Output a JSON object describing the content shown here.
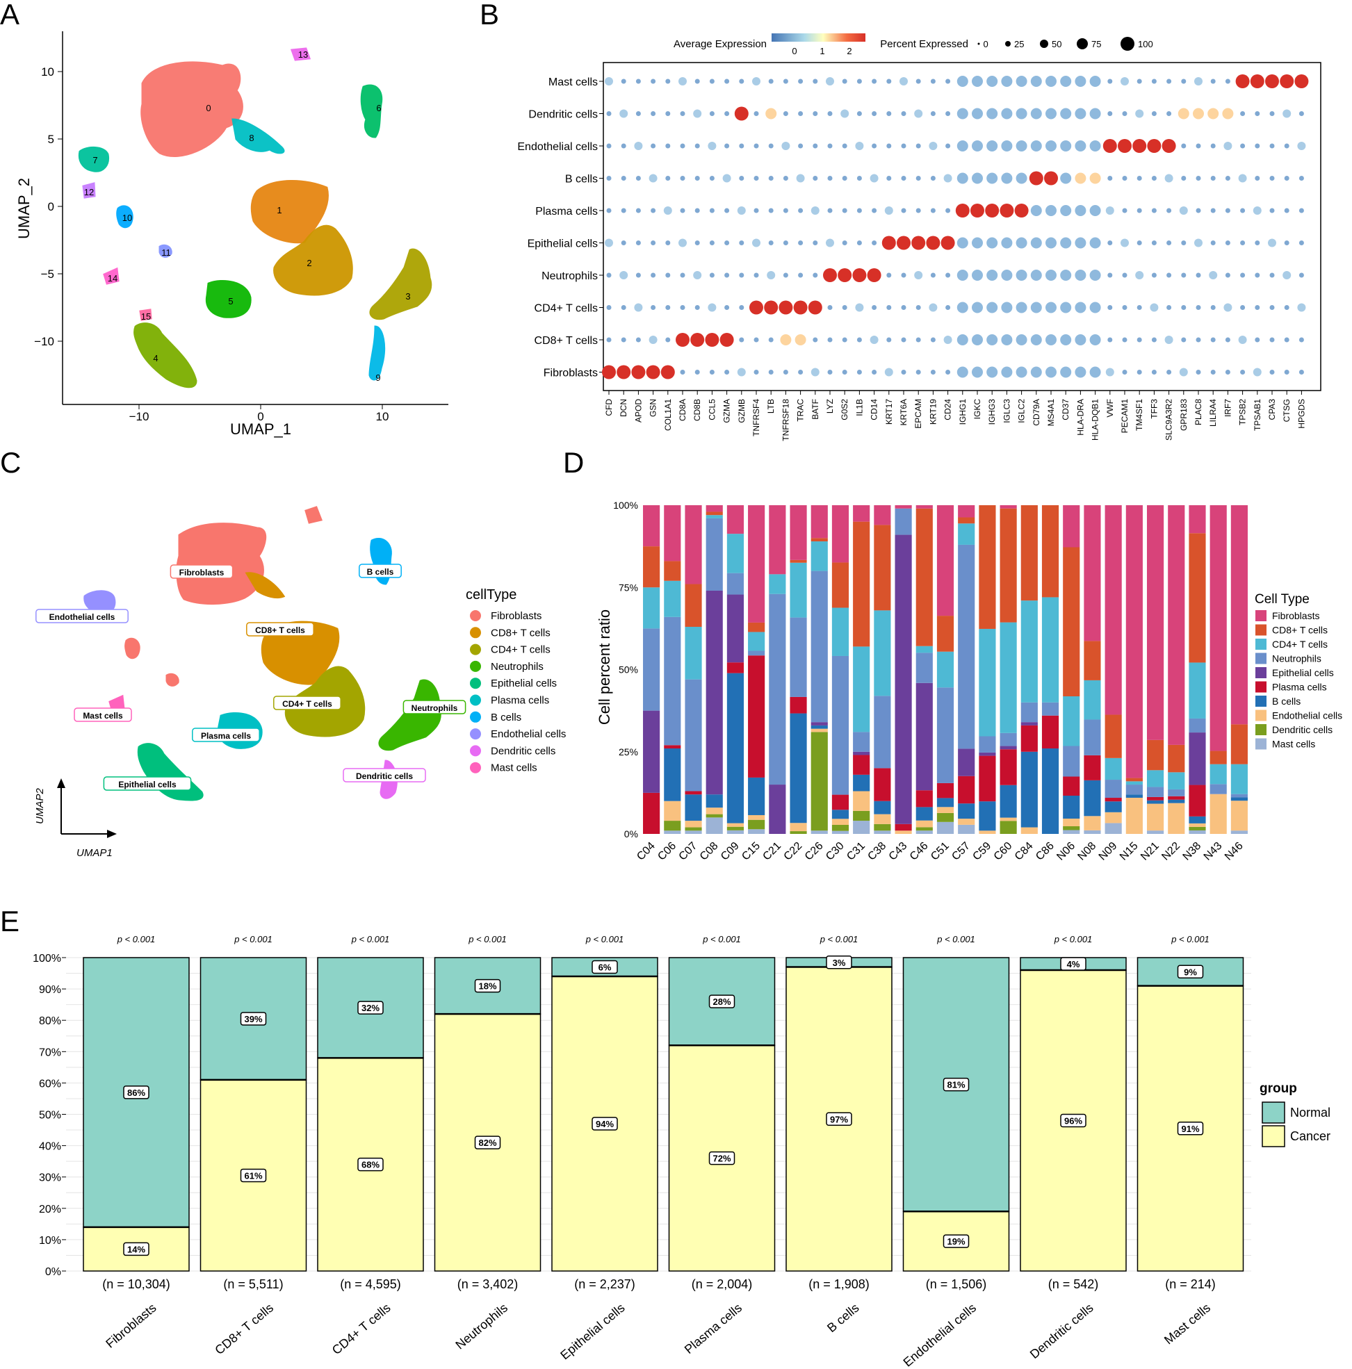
{
  "panels": {
    "a": "A",
    "b": "B",
    "c": "C",
    "d": "D",
    "e": "E"
  },
  "panelA": {
    "xlabel": "UMAP_1",
    "ylabel": "UMAP_2",
    "xticks": [
      "−10",
      "0",
      "10"
    ],
    "yticks": [
      "10",
      "5",
      "0",
      "−5",
      "−10"
    ],
    "clusters": [
      {
        "id": "0",
        "color": "#F8766D"
      },
      {
        "id": "1",
        "color": "#E68613"
      },
      {
        "id": "2",
        "color": "#CD9600"
      },
      {
        "id": "3",
        "color": "#ABA300"
      },
      {
        "id": "4",
        "color": "#7CAE00"
      },
      {
        "id": "5",
        "color": "#0CB702"
      },
      {
        "id": "6",
        "color": "#00BE67"
      },
      {
        "id": "7",
        "color": "#00C19A"
      },
      {
        "id": "8",
        "color": "#00BFC4"
      },
      {
        "id": "9",
        "color": "#00B8E7"
      },
      {
        "id": "10",
        "color": "#00A9FF"
      },
      {
        "id": "11",
        "color": "#8494FF"
      },
      {
        "id": "12",
        "color": "#C77CFF"
      },
      {
        "id": "13",
        "color": "#ED68ED"
      },
      {
        "id": "14",
        "color": "#FF61CC"
      },
      {
        "id": "15",
        "color": "#FF68A1"
      }
    ]
  },
  "panelB": {
    "legend_expr_title": "Average Expression",
    "expr_ticks": [
      "0",
      "1",
      "2"
    ],
    "legend_pct_title": "Percent Expressed",
    "pct_ticks": [
      "0",
      "25",
      "50",
      "75",
      "100"
    ],
    "rows": [
      "Mast cells",
      "Dendritic cells",
      "Endothelial cells",
      "B cells",
      "Plasma cells",
      "Epithelial cells",
      "Neutrophils",
      "CD4+ T cells",
      "CD8+ T cells",
      "Fibroblasts"
    ],
    "genes": [
      "CFD",
      "DCN",
      "APOD",
      "GSN",
      "COL1A1",
      "CD8A",
      "CD8B",
      "CCL5",
      "GZMA",
      "GZMB",
      "TNFRSF4",
      "LTB",
      "TNFRSF18",
      "TRAC",
      "BATF",
      "LYZ",
      "G0S2",
      "IL1B",
      "CD14",
      "KRT17",
      "KRT6A",
      "EPCAM",
      "KRT19",
      "CD24",
      "IGHG1",
      "IGKC",
      "IGHG3",
      "IGLC3",
      "IGLC2",
      "CD79A",
      "MS4A1",
      "CD37",
      "HLA-DRA",
      "HLA-DQB1",
      "VWF",
      "PECAM1",
      "TM4SF1",
      "TFF3",
      "SLC9A3R2",
      "GPR183",
      "PLAC8",
      "LILRA4",
      "IRF7",
      "TPSB2",
      "TPSAB1",
      "CPA3",
      "CTSG",
      "HPGDS"
    ]
  },
  "panelC": {
    "legend_title": "cellType",
    "xlabel": "UMAP1",
    "ylabel": "UMAP2",
    "types": [
      {
        "name": "Fibroblasts",
        "color": "#F8766D"
      },
      {
        "name": "CD8+ T cells",
        "color": "#D89000"
      },
      {
        "name": "CD4+ T cells",
        "color": "#A3A500"
      },
      {
        "name": "Neutrophils",
        "color": "#39B600"
      },
      {
        "name": "Epithelial cells",
        "color": "#00BF7D"
      },
      {
        "name": "Plasma cells",
        "color": "#00BFC4"
      },
      {
        "name": "B cells",
        "color": "#00B0F6"
      },
      {
        "name": "Endothelial cells",
        "color": "#9590FF"
      },
      {
        "name": "Dendritic cells",
        "color": "#E76BF3"
      },
      {
        "name": "Mast cells",
        "color": "#FF62BC"
      }
    ]
  },
  "chart_data": [
    {
      "type": "bar",
      "title": "",
      "ylabel": "Cell percent ratio",
      "yticks": [
        "0%",
        "25%",
        "50%",
        "75%",
        "100%"
      ],
      "legend_title": "Cell Type",
      "series_names": [
        "Fibroblasts",
        "CD8+ T cells",
        "CD4+ T cells",
        "Neutrophils",
        "Epithelial cells",
        "Plasma cells",
        "B cells",
        "Endothelial cells",
        "Dendritic cells",
        "Mast cells"
      ],
      "colors": [
        "#D8437A",
        "#D9532B",
        "#4EB9D4",
        "#6A8FCB",
        "#6B3F9B",
        "#C70F2D",
        "#2270B5",
        "#F9C17F",
        "#7A9E1F",
        "#9CB3D6"
      ],
      "categories": [
        "C04",
        "C06",
        "C07",
        "C08",
        "C09",
        "C15",
        "C21",
        "C22",
        "C26",
        "C30",
        "C31",
        "C38",
        "C43",
        "C46",
        "C51",
        "C57",
        "C59",
        "C60",
        "C84",
        "C86",
        "N06",
        "N08",
        "N09",
        "N15",
        "N21",
        "N22",
        "N38",
        "N43",
        "N46"
      ],
      "stacks": [
        [
          1,
          1,
          1,
          2,
          2,
          1,
          0,
          0,
          0,
          0
        ],
        [
          17,
          6,
          11,
          39,
          0,
          1,
          16,
          6,
          3,
          1
        ],
        [
          24,
          13,
          16,
          34,
          0,
          1,
          8,
          2,
          1,
          1
        ],
        [
          2,
          1,
          1,
          22,
          62,
          0,
          4,
          2,
          1,
          5
        ],
        [
          8,
          0,
          11,
          6,
          19,
          3,
          42,
          1,
          1,
          1
        ],
        [
          25,
          2,
          4,
          1,
          0,
          26,
          8,
          1,
          2,
          1
        ],
        [
          21,
          0,
          6,
          58,
          15,
          0,
          0,
          0,
          0,
          0
        ],
        [
          20,
          1,
          20,
          29,
          0,
          6,
          40,
          3,
          1,
          0
        ],
        [
          10,
          1,
          9,
          46,
          1,
          0,
          1,
          1,
          30,
          1
        ],
        [
          19,
          15,
          16,
          46,
          0,
          5,
          3,
          2,
          2,
          1
        ],
        [
          5,
          38,
          26,
          6,
          1,
          6,
          5,
          6,
          3,
          4
        ],
        [
          6,
          26,
          26,
          22,
          0,
          10,
          4,
          3,
          2,
          1
        ],
        [
          1,
          0,
          0,
          8,
          88,
          2,
          0,
          1,
          0,
          0
        ],
        [
          1,
          41,
          2,
          9,
          32,
          5,
          4,
          2,
          1,
          1
        ],
        [
          37,
          12,
          12,
          32,
          0,
          5,
          3,
          2,
          3,
          4
        ],
        [
          4,
          2,
          7,
          67,
          9,
          9,
          5,
          2,
          0,
          3
        ],
        [
          0,
          38,
          33,
          5,
          1,
          14,
          9,
          1,
          0,
          0
        ],
        [
          1,
          35,
          34,
          4,
          1,
          11,
          10,
          1,
          4,
          0
        ],
        [
          0,
          29,
          31,
          6,
          1,
          8,
          23,
          2,
          0,
          0
        ],
        [
          0,
          28,
          32,
          4,
          0,
          10,
          26,
          0,
          0,
          0
        ],
        [
          11,
          39,
          13,
          8,
          0,
          5,
          6,
          2,
          1,
          1
        ],
        [
          38,
          11,
          11,
          10,
          0,
          7,
          10,
          4,
          0,
          1
        ],
        [
          58,
          12,
          6,
          5,
          0,
          1,
          3,
          3,
          0,
          3
        ],
        [
          83,
          1,
          1,
          3,
          0,
          0,
          1,
          11,
          0,
          0
        ],
        [
          70,
          9,
          5,
          3,
          0,
          1,
          1,
          8,
          0,
          1
        ],
        [
          70,
          8,
          5,
          2,
          0,
          1,
          1,
          9,
          0,
          0
        ],
        [
          8,
          37,
          16,
          4,
          15,
          9,
          2,
          1,
          1,
          1
        ],
        [
          74,
          4,
          6,
          3,
          0,
          0,
          0,
          12,
          0,
          0
        ],
        [
          66,
          12,
          9,
          1,
          0,
          0,
          1,
          9,
          0,
          1
        ]
      ]
    },
    {
      "type": "bar",
      "title": "",
      "legend_title": "group",
      "series_names": [
        "Normal",
        "Cancer"
      ],
      "colors": [
        "#8DD3C7",
        "#FFFFB3"
      ],
      "yticks": [
        "0%",
        "10%",
        "20%",
        "30%",
        "40%",
        "50%",
        "60%",
        "70%",
        "80%",
        "90%",
        "100%"
      ],
      "categories": [
        "Fibroblasts",
        "CD8+ T cells",
        "CD4+ T cells",
        "Neutrophils",
        "Epithelial cells",
        "Plasma cells",
        "B cells",
        "Endothelial cells",
        "Dendritic cells",
        "Mast cells"
      ],
      "normal": [
        86,
        39,
        32,
        18,
        6,
        28,
        3,
        81,
        4,
        9
      ],
      "cancer": [
        14,
        61,
        68,
        82,
        94,
        72,
        97,
        19,
        96,
        91
      ],
      "normal_labels": [
        "86%",
        "39%",
        "32%",
        "18%",
        "6%",
        "28%",
        "3%",
        "81%",
        "4%",
        "9%"
      ],
      "cancer_labels": [
        "14%",
        "61%",
        "68%",
        "82%",
        "94%",
        "72%",
        "97%",
        "19%",
        "96%",
        "91%"
      ],
      "n_labels": [
        "(n = 10,304)",
        "(n = 5,511)",
        "(n = 4,595)",
        "(n = 3,402)",
        "(n = 2,237)",
        "(n = 2,004)",
        "(n = 1,908)",
        "(n = 1,506)",
        "(n = 542)",
        "(n = 214)"
      ],
      "pvalue": "p < 0.001"
    }
  ]
}
